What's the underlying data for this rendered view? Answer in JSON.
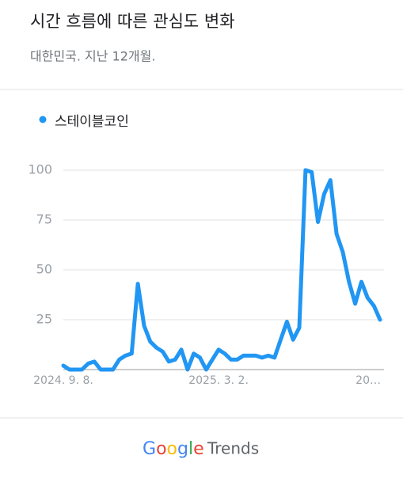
{
  "chart_data": {
    "type": "line",
    "title": "시간 흐름에 따른 관심도 변화",
    "subtitle": "대한민국. 지난 12개월.",
    "categories": [
      "2024. 9. 8.",
      null,
      null,
      null,
      null,
      null,
      null,
      null,
      null,
      null,
      null,
      null,
      null,
      null,
      null,
      null,
      null,
      null,
      null,
      null,
      null,
      null,
      null,
      null,
      null,
      "2025. 3. 2.",
      null,
      null,
      null,
      null,
      null,
      null,
      null,
      null,
      null,
      null,
      null,
      null,
      null,
      null,
      null,
      null,
      null,
      null,
      null,
      null,
      null,
      null,
      null,
      null,
      "20…",
      null
    ],
    "series": [
      {
        "name": "스테이블코인",
        "color": "#2196f3",
        "values": [
          2,
          0,
          0,
          0,
          3,
          4,
          0,
          0,
          0,
          5,
          7,
          8,
          43,
          22,
          14,
          11,
          9,
          4,
          5,
          10,
          0,
          8,
          6,
          0,
          5,
          10,
          8,
          5,
          5,
          7,
          7,
          7,
          6,
          7,
          6,
          15,
          24,
          15,
          21,
          100,
          99,
          74,
          88,
          95,
          68,
          59,
          44,
          33,
          44,
          36,
          32,
          25
        ]
      }
    ],
    "ylim": [
      0,
      100
    ],
    "yticks": [
      25,
      50,
      75,
      100
    ],
    "grid": true,
    "footer": {
      "brand": "Google",
      "product": "Trends"
    }
  }
}
